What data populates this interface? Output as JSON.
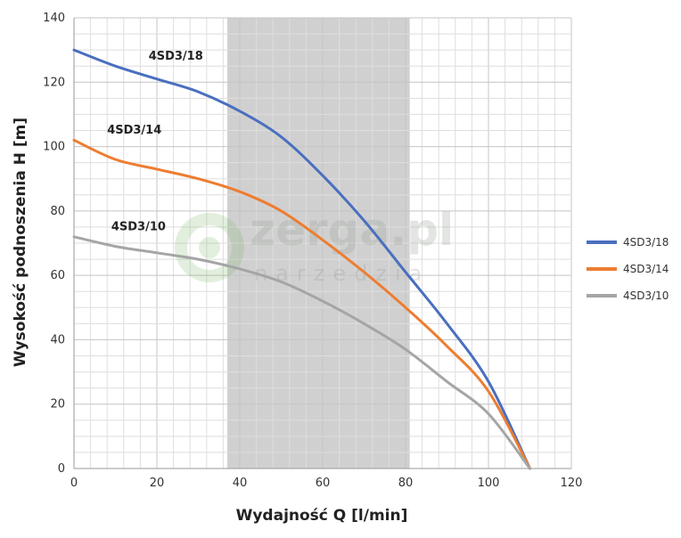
{
  "chart_data": {
    "type": "line",
    "xlabel": "Wydajność Q [l/min]",
    "ylabel": "Wysokość podnoszenia H [m]",
    "xlim": [
      0,
      120
    ],
    "ylim": [
      0,
      140
    ],
    "x_ticks": [
      "0",
      "20",
      "40",
      "60",
      "80",
      "100",
      "120"
    ],
    "y_ticks": [
      "0",
      "20",
      "40",
      "60",
      "80",
      "100",
      "120",
      "140"
    ],
    "grid": true,
    "legend_position": "right",
    "highlight_band": [
      37,
      81
    ],
    "series": [
      {
        "name": "4SD3/18",
        "color": "#4a6fbf",
        "x": [
          0,
          10,
          20,
          30,
          40,
          50,
          60,
          70,
          80,
          90,
          100,
          110
        ],
        "y": [
          130,
          125,
          121,
          117,
          111,
          103,
          91,
          77,
          61,
          45,
          27,
          0
        ]
      },
      {
        "name": "4SD3/14",
        "color": "#ed7d31",
        "x": [
          0,
          10,
          20,
          30,
          40,
          50,
          60,
          70,
          80,
          90,
          100,
          110
        ],
        "y": [
          102,
          96,
          93,
          90,
          86,
          80,
          71,
          61,
          50,
          38,
          24,
          0
        ]
      },
      {
        "name": "4SD3/10",
        "color": "#a5a5a5",
        "x": [
          0,
          10,
          20,
          30,
          40,
          50,
          60,
          70,
          80,
          90,
          100,
          110
        ],
        "y": [
          72,
          69,
          67,
          65,
          62,
          58,
          52,
          45,
          37,
          27,
          17,
          0
        ]
      }
    ]
  },
  "watermark": {
    "brand": "zerga.pl",
    "sub": "narzedzia"
  }
}
